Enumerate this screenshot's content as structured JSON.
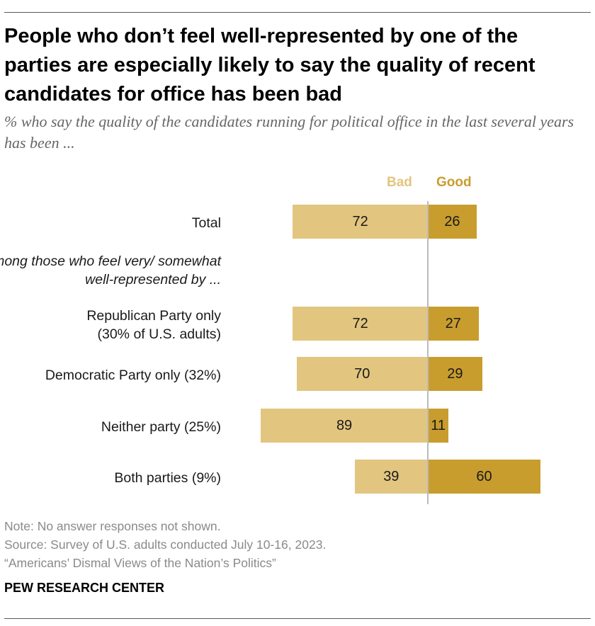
{
  "title": "People who don’t feel well-represented by one of the parties are especially likely to say the quality of recent candidates for office has been bad",
  "subtitle": "% who say the quality of the candidates running for political office in the last several years has been ...",
  "legend": {
    "bad": "Bad",
    "good": "Good"
  },
  "subheading": "Among those who feel very/ somewhat well-represented by ...",
  "colors": {
    "bad": "#e2c57f",
    "good": "#c89d2e"
  },
  "chart_data": {
    "type": "bar",
    "orientation": "horizontal-diverging",
    "categories": [
      "Total",
      "Republican Party only (30% of U.S. adults)",
      "Democratic Party only (32%)",
      "Neither party (25%)",
      "Both parties (9%)"
    ],
    "series": [
      {
        "name": "Bad",
        "values": [
          72,
          72,
          70,
          89,
          39
        ]
      },
      {
        "name": "Good",
        "values": [
          26,
          27,
          29,
          11,
          60
        ]
      }
    ],
    "xlim": [
      -100,
      100
    ]
  },
  "footer": {
    "note": "Note: No answer responses not shown.",
    "source": "Source: Survey of U.S. adults conducted July 10-16, 2023.",
    "report": "“Americans’ Dismal Views of the Nation’s Politics”",
    "brand": "PEW RESEARCH CENTER"
  }
}
